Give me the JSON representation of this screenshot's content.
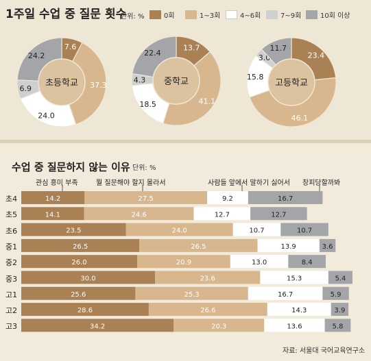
{
  "section1": {
    "title": "1주일 수업 중 질문 횟수",
    "unit": "단위: %"
  },
  "legend": [
    {
      "label": "0회",
      "color": "#a98154"
    },
    {
      "label": "1~3회",
      "color": "#d8b78e"
    },
    {
      "label": "4~6회",
      "color": "#ffffff"
    },
    {
      "label": "7~9회",
      "color": "#cfcfcf"
    },
    {
      "label": "10회 이상",
      "color": "#a3a5a8"
    }
  ],
  "section2": {
    "title": "수업 중 질문하지 않는 이유",
    "unit": "단위: %"
  },
  "reason_headers": [
    "관심 흥미 부족",
    "뭘 질문해야 할지 몰라서",
    "사람들 앞에서 말하기 싫어서",
    "창피당할까봐"
  ],
  "source": "자료: 서울대 국어교육연구소",
  "chart_data": [
    {
      "type": "pie",
      "title": "1주일 수업 중 질문 횟수",
      "categories": [
        "0회",
        "1~3회",
        "4~6회",
        "7~9회",
        "10회 이상"
      ],
      "colors": [
        "#a98154",
        "#d8b78e",
        "#ffffff",
        "#cfcfcf",
        "#a3a5a8"
      ],
      "series": [
        {
          "name": "초등학교",
          "values": [
            7.6,
            37.3,
            24.0,
            6.9,
            24.2
          ]
        },
        {
          "name": "중학교",
          "values": [
            13.7,
            41.1,
            18.5,
            4.3,
            22.4
          ]
        },
        {
          "name": "고등학교",
          "values": [
            23.4,
            46.1,
            15.8,
            3.0,
            11.7
          ]
        }
      ]
    },
    {
      "type": "bar",
      "title": "수업 중 질문하지 않는 이유",
      "stacked": true,
      "orientation": "horizontal",
      "categories": [
        "초4",
        "초5",
        "초6",
        "중1",
        "중2",
        "중3",
        "고1",
        "고2",
        "고3"
      ],
      "series": [
        {
          "name": "관심 흥미 부족",
          "color": "#a98154",
          "values": [
            14.2,
            14.1,
            23.5,
            26.5,
            26.0,
            30.0,
            25.6,
            28.6,
            34.2
          ]
        },
        {
          "name": "뭘 질문해야 할지 몰라서",
          "color": "#d8b78e",
          "values": [
            27.5,
            24.6,
            24.0,
            26.5,
            20.9,
            23.6,
            25.3,
            26.6,
            20.3
          ]
        },
        {
          "name": "사람들 앞에서 말하기 싫어서",
          "color": "#ffffff",
          "values": [
            9.2,
            12.7,
            10.7,
            13.9,
            13.0,
            15.3,
            16.7,
            14.3,
            13.6
          ]
        },
        {
          "name": "창피당할까봐",
          "color": "#a3a5a8",
          "values": [
            16.7,
            12.7,
            10.7,
            3.6,
            8.4,
            5.4,
            5.9,
            3.9,
            5.8
          ]
        }
      ]
    }
  ]
}
